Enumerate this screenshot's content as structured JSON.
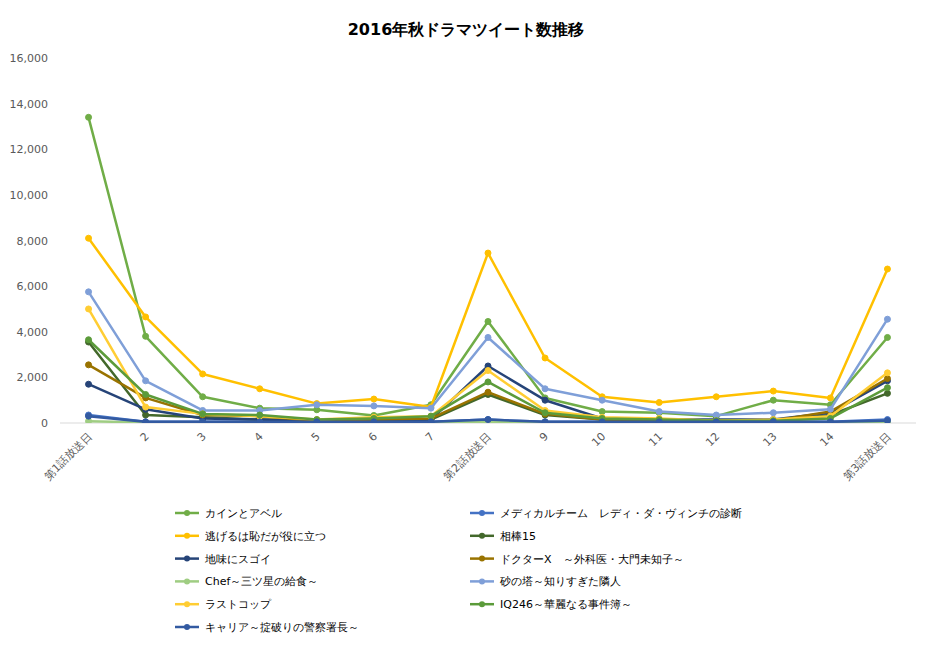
{
  "chart_data": {
    "type": "line",
    "title": "2016年秋ドラマツイート数推移",
    "categories": [
      "第1話放送日",
      "2",
      "3",
      "4",
      "5",
      "6",
      "7",
      "第2話放送日",
      "9",
      "10",
      "11",
      "12",
      "13",
      "14",
      "第3話放送日"
    ],
    "ylim": [
      0,
      16000
    ],
    "yticks": [
      0,
      {
        "value": 2000,
        "label": "2,000"
      },
      {
        "value": 4000,
        "label": "4,000"
      },
      {
        "value": 6000,
        "label": "6,000"
      },
      {
        "value": 8000,
        "label": "8,000"
      },
      {
        "value": 10000,
        "label": "10,000"
      },
      {
        "value": 12000,
        "label": "12,000"
      },
      {
        "value": 14000,
        "label": "14,000"
      },
      {
        "value": 16000,
        "label": "16,000"
      }
    ],
    "grid": false,
    "legend": "bottom",
    "marker": "circle",
    "series": [
      {
        "name": "カインとアベル",
        "color": "#70ad47",
        "values": [
          13400,
          3800,
          1150,
          650,
          580,
          330,
          800,
          4450,
          1100,
          500,
          450,
          300,
          1000,
          800,
          3750
        ]
      },
      {
        "name": "メディカルチーム　レディ・ダ・ヴィンチの診断",
        "color": "#4472c4",
        "values": [
          350,
          50,
          50,
          50,
          50,
          50,
          50,
          150,
          50,
          50,
          50,
          50,
          50,
          50,
          150
        ]
      },
      {
        "name": "逃げるは恥だが役に立つ",
        "color": "#ffc000",
        "values": [
          8100,
          4650,
          2150,
          1500,
          850,
          1050,
          700,
          7450,
          2850,
          1150,
          900,
          1150,
          1400,
          1100,
          6750
        ]
      },
      {
        "name": "相棒15",
        "color": "#43682b",
        "values": [
          3550,
          350,
          250,
          150,
          100,
          100,
          150,
          1250,
          350,
          150,
          100,
          100,
          100,
          350,
          1300
        ]
      },
      {
        "name": "地味にスゴイ",
        "color": "#264478",
        "values": [
          1700,
          600,
          200,
          150,
          100,
          100,
          150,
          2500,
          1000,
          200,
          150,
          150,
          150,
          450,
          1850
        ]
      },
      {
        "name": "ドクターX　～外科医・大門未知子～",
        "color": "#997300",
        "values": [
          2550,
          1100,
          350,
          300,
          100,
          150,
          200,
          1350,
          400,
          150,
          150,
          100,
          100,
          500,
          1950
        ]
      },
      {
        "name": "Chef～三ツ星の給食～",
        "color": "#9fcd82",
        "values": [
          80,
          20,
          20,
          20,
          20,
          20,
          20,
          50,
          20,
          20,
          20,
          20,
          20,
          20,
          40
        ]
      },
      {
        "name": "砂の塔～知りすぎた隣人",
        "color": "#7f9fd8",
        "values": [
          5750,
          1850,
          550,
          550,
          800,
          750,
          650,
          3750,
          1500,
          1000,
          500,
          350,
          450,
          600,
          4550
        ]
      },
      {
        "name": "ラストコップ",
        "color": "#ffcd33",
        "values": [
          5000,
          700,
          400,
          300,
          150,
          250,
          300,
          2300,
          550,
          250,
          200,
          100,
          150,
          300,
          2200
        ]
      },
      {
        "name": "IQ246～華麗なる事件簿～",
        "color": "#5b9b3a",
        "values": [
          3650,
          1250,
          400,
          350,
          150,
          200,
          300,
          1800,
          450,
          200,
          150,
          100,
          100,
          200,
          1550
        ]
      },
      {
        "name": "キャリア～掟破りの警察署長～",
        "color": "#335aa1",
        "values": [
          300,
          50,
          50,
          50,
          50,
          50,
          50,
          150,
          50,
          50,
          50,
          50,
          50,
          50,
          100
        ]
      }
    ]
  }
}
